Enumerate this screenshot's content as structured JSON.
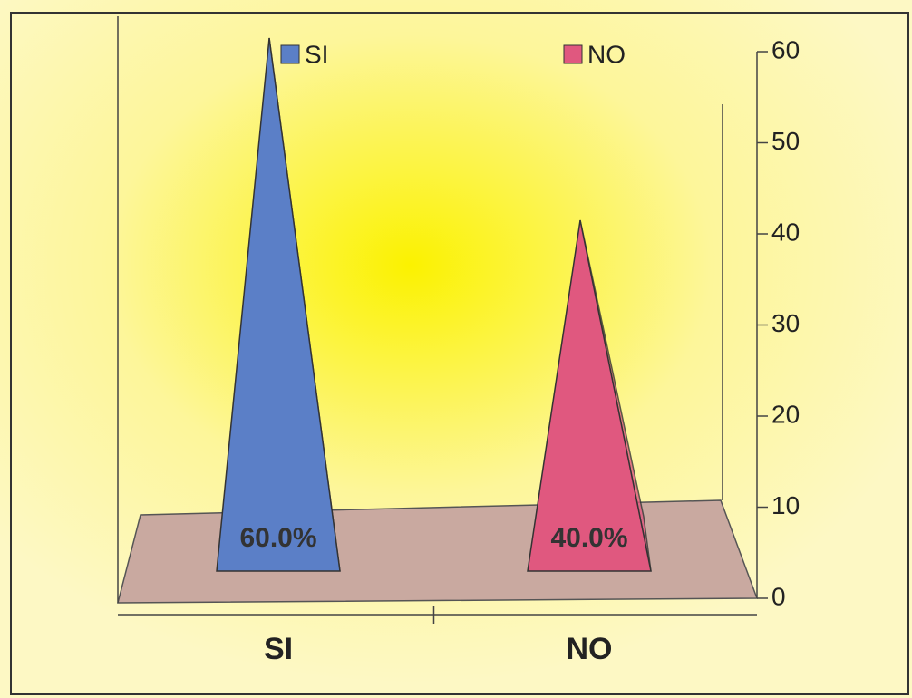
{
  "chart_data": {
    "type": "pyramid",
    "categories": [
      "SI",
      "NO"
    ],
    "series": [
      {
        "name": "SI",
        "color": "#5b7fc7",
        "values": [
          60,
          null
        ],
        "value_labels": [
          "60.0%",
          null
        ]
      },
      {
        "name": "NO",
        "color": "#e0587f",
        "values": [
          null,
          40
        ],
        "value_labels": [
          null,
          "40.0%"
        ]
      }
    ],
    "ylim": [
      0,
      60
    ],
    "yticks": [
      0,
      10,
      20,
      30,
      40,
      50,
      60
    ]
  }
}
